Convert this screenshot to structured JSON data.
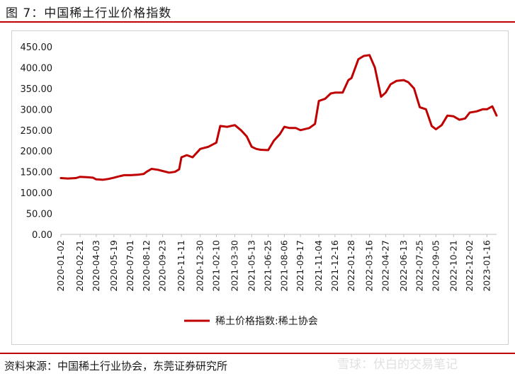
{
  "figure_title": "图 7：中国稀土行业价格指数",
  "source_note": "资料来源：中国稀土行业协会，东莞证券研究所",
  "watermark": "雪球：伏白的交易笔记",
  "colors": {
    "line": "#c00000",
    "rule": "#c00000",
    "axis": "#bfbfbf"
  },
  "chart_data": {
    "type": "line",
    "title": "",
    "xlabel": "",
    "ylabel": "",
    "ylim": [
      0,
      450
    ],
    "y_ticks": [
      "0.00",
      "50.00",
      "100.00",
      "150.00",
      "200.00",
      "250.00",
      "300.00",
      "350.00",
      "400.00",
      "450.00"
    ],
    "x_tick_labels": [
      "2020-01-02",
      "2020-02-21",
      "2020-04-03",
      "2020-05-19",
      "2020-07-01",
      "2020-08-12",
      "2020-09-23",
      "2020-11-11",
      "2020-12-30",
      "2021-02-10",
      "2021-03-30",
      "2021-05-13",
      "2021-06-25",
      "2021-08-06",
      "2021-09-17",
      "2021-11-04",
      "2021-12-16",
      "2022-01-28",
      "2022-03-16",
      "2022-04-27",
      "2022-06-13",
      "2022-07-25",
      "2022-09-05",
      "2022-10-21",
      "2022-12-02",
      "2023-01-16"
    ],
    "legend": {
      "placement": "bottom",
      "entries": [
        "稀土价格指数:稀土协会"
      ]
    },
    "series": [
      {
        "name": "稀土价格指数:稀土协会",
        "x": [
          "2020-01-02",
          "2020-01-20",
          "2020-02-10",
          "2020-02-21",
          "2020-03-10",
          "2020-03-25",
          "2020-04-03",
          "2020-04-20",
          "2020-05-05",
          "2020-05-19",
          "2020-06-05",
          "2020-06-15",
          "2020-07-01",
          "2020-07-20",
          "2020-08-05",
          "2020-08-12",
          "2020-08-25",
          "2020-09-10",
          "2020-09-23",
          "2020-10-10",
          "2020-10-25",
          "2020-11-05",
          "2020-11-11",
          "2020-11-25",
          "2020-12-10",
          "2020-12-30",
          "2021-01-20",
          "2021-02-10",
          "2021-02-20",
          "2021-03-10",
          "2021-03-30",
          "2021-04-15",
          "2021-04-30",
          "2021-05-13",
          "2021-05-25",
          "2021-06-05",
          "2021-06-25",
          "2021-07-10",
          "2021-07-25",
          "2021-08-06",
          "2021-08-20",
          "2021-09-05",
          "2021-09-17",
          "2021-10-10",
          "2021-10-25",
          "2021-11-04",
          "2021-11-20",
          "2021-12-05",
          "2021-12-16",
          "2022-01-05",
          "2022-01-20",
          "2022-01-28",
          "2022-02-15",
          "2022-03-01",
          "2022-03-16",
          "2022-03-30",
          "2022-04-15",
          "2022-04-27",
          "2022-05-10",
          "2022-05-25",
          "2022-06-13",
          "2022-06-25",
          "2022-07-10",
          "2022-07-25",
          "2022-08-10",
          "2022-08-25",
          "2022-09-05",
          "2022-09-20",
          "2022-10-05",
          "2022-10-21",
          "2022-11-05",
          "2022-11-20",
          "2022-12-02",
          "2022-12-20",
          "2023-01-05",
          "2023-01-16",
          "2023-01-30",
          "2023-02-10"
        ],
        "values": [
          135,
          134,
          135,
          138,
          137,
          136,
          132,
          131,
          133,
          136,
          140,
          142,
          142,
          143,
          145,
          150,
          157,
          155,
          152,
          148,
          150,
          156,
          185,
          190,
          185,
          205,
          210,
          220,
          260,
          258,
          262,
          250,
          235,
          210,
          205,
          203,
          202,
          225,
          240,
          258,
          255,
          255,
          250,
          255,
          265,
          320,
          325,
          338,
          340,
          340,
          370,
          375,
          420,
          428,
          430,
          400,
          330,
          340,
          360,
          368,
          370,
          365,
          350,
          305,
          300,
          260,
          252,
          262,
          285,
          283,
          275,
          278,
          292,
          295,
          300,
          300,
          307,
          285
        ]
      }
    ]
  }
}
